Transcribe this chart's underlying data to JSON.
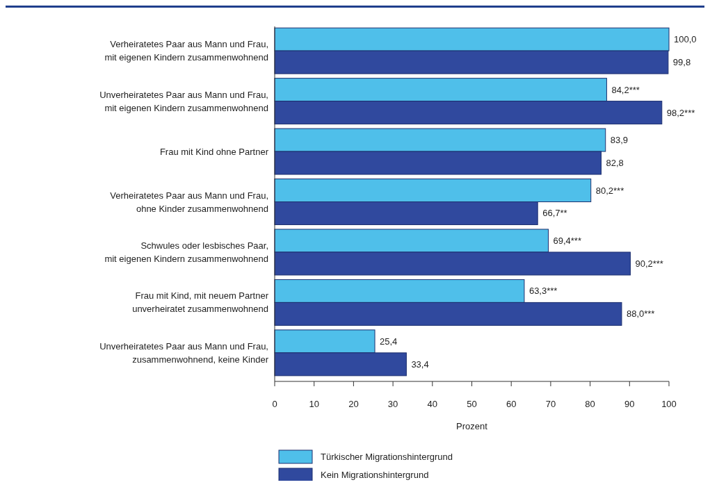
{
  "chart_data": {
    "type": "bar",
    "orientation": "horizontal",
    "xlabel": "Prozent",
    "categories": [
      "Verheiratetes Paar aus Mann und Frau,\nmit eigenen Kindern zusammenwohnend",
      "Unverheiratetes Paar aus Mann und Frau,\nmit eigenen Kindern zusammenwohnend",
      "Frau mit Kind ohne Partner",
      "Verheiratetes Paar aus Mann und Frau,\nohne Kinder zusammenwohnend",
      "Schwules oder lesbisches Paar,\nmit eigenen Kindern zusammenwohnend",
      "Frau mit Kind, mit neuem Partner\nunverheiratet zusammenwohnend",
      "Unverheiratetes Paar aus Mann und Frau,\nzusammenwohnend, keine Kinder"
    ],
    "series": [
      {
        "name": "Türkischer Migrationshintergrund",
        "color": "#4fbfea",
        "values": [
          100.0,
          84.2,
          83.9,
          80.2,
          69.4,
          63.3,
          25.4
        ],
        "value_labels": [
          "100,0",
          "84,2***",
          "83,9",
          "80,2***",
          "69,4***",
          "63,3***",
          "25,4"
        ]
      },
      {
        "name": "Kein Migrationshintergrund",
        "color": "#30499e",
        "values": [
          99.8,
          98.2,
          82.8,
          66.7,
          90.2,
          88.0,
          33.4
        ],
        "value_labels": [
          "99,8",
          "98,2***",
          "82,8",
          "66,7**",
          "90,2***",
          "88,0***",
          "33,4"
        ]
      }
    ],
    "xlim": [
      0,
      100
    ],
    "xticks": [
      0,
      10,
      20,
      30,
      40,
      50,
      60,
      70,
      80,
      90,
      100
    ],
    "grid": false,
    "legend": "bottom"
  }
}
